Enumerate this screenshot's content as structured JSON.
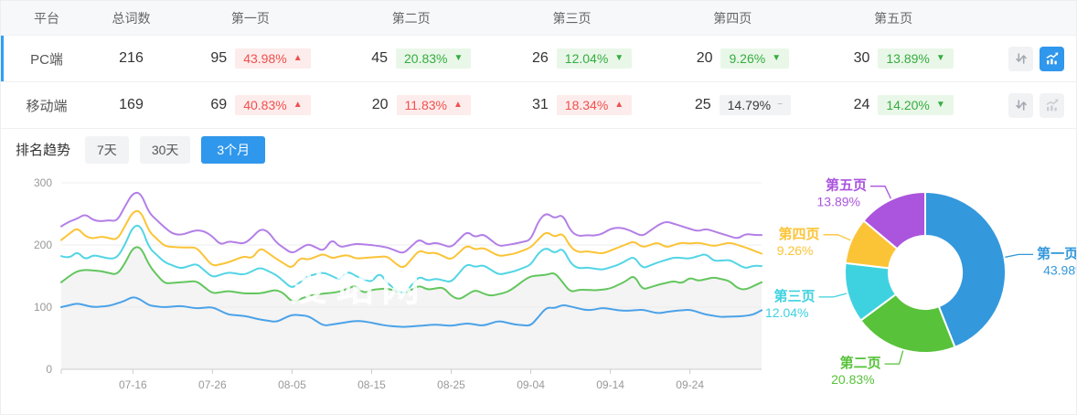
{
  "table": {
    "headers": [
      "平台",
      "总词数",
      "第一页",
      "第二页",
      "第三页",
      "第四页",
      "第五页"
    ],
    "rows": [
      {
        "platform": "PC端",
        "total": "216",
        "selected": true,
        "pages": [
          {
            "count": "95",
            "pct": "43.98%",
            "arrow": "▲",
            "tone": "red"
          },
          {
            "count": "45",
            "pct": "20.83%",
            "arrow": "▼",
            "tone": "green"
          },
          {
            "count": "26",
            "pct": "12.04%",
            "arrow": "▼",
            "tone": "green"
          },
          {
            "count": "20",
            "pct": "9.26%",
            "arrow": "▼",
            "tone": "green"
          },
          {
            "count": "30",
            "pct": "13.89%",
            "arrow": "▼",
            "tone": "green"
          }
        ],
        "trend_button_active": true
      },
      {
        "platform": "移动端",
        "total": "169",
        "selected": false,
        "pages": [
          {
            "count": "69",
            "pct": "40.83%",
            "arrow": "▲",
            "tone": "red"
          },
          {
            "count": "20",
            "pct": "11.83%",
            "arrow": "▲",
            "tone": "red"
          },
          {
            "count": "31",
            "pct": "18.34%",
            "arrow": "▲",
            "tone": "red"
          },
          {
            "count": "25",
            "pct": "14.79%",
            "arrow": "−",
            "tone": "gray"
          },
          {
            "count": "24",
            "pct": "14.20%",
            "arrow": "▼",
            "tone": "green"
          }
        ],
        "trend_button_active": false
      }
    ]
  },
  "trend": {
    "title": "排名趋势",
    "tabs": [
      "7天",
      "30天",
      "3个月"
    ],
    "active_tab": "3个月"
  },
  "colors": {
    "accent_blue": "#2f97ec",
    "row_select_bar": "#2f9ff2",
    "badge_red": "#f0504d",
    "badge_green": "#35ad3f",
    "area_fill": "#f4f4f4"
  },
  "chart_data": [
    {
      "type": "line",
      "title": "排名趋势 3个月",
      "ylim": [
        0,
        300
      ],
      "yticks": [
        0,
        100,
        200,
        300
      ],
      "grid": "horizontal",
      "legend_position": "none",
      "watermark": "爱站网",
      "area_color": "#f4f4f4",
      "x_tick_labels": [
        "07-16",
        "07-26",
        "08-05",
        "08-15",
        "08-25",
        "09-04",
        "09-14",
        "09-24"
      ],
      "x": [
        "07-07",
        "07-08",
        "07-09",
        "07-10",
        "07-11",
        "07-12",
        "07-13",
        "07-14",
        "07-15",
        "07-16",
        "07-17",
        "07-18",
        "07-19",
        "07-20",
        "07-21",
        "07-22",
        "07-23",
        "07-24",
        "07-25",
        "07-26",
        "07-27",
        "07-28",
        "07-29",
        "07-30",
        "07-31",
        "08-01",
        "08-02",
        "08-03",
        "08-04",
        "08-05",
        "08-06",
        "08-07",
        "08-08",
        "08-09",
        "08-10",
        "08-11",
        "08-12",
        "08-13",
        "08-14",
        "08-15",
        "08-16",
        "08-17",
        "08-18",
        "08-19",
        "08-20",
        "08-21",
        "08-22",
        "08-23",
        "08-24",
        "08-25",
        "08-26",
        "08-27",
        "08-28",
        "08-29",
        "08-30",
        "08-31",
        "09-01",
        "09-02",
        "09-03",
        "09-04",
        "09-05",
        "09-06",
        "09-07",
        "09-08",
        "09-09",
        "09-10",
        "09-11",
        "09-12",
        "09-13",
        "09-14",
        "09-15",
        "09-16",
        "09-17",
        "09-18",
        "09-19",
        "09-20",
        "09-21",
        "09-22",
        "09-23",
        "09-24",
        "09-25",
        "09-26",
        "09-27",
        "09-28",
        "09-29",
        "09-30",
        "10-01",
        "10-02",
        "10-03"
      ],
      "series": [
        {
          "name": "第一页",
          "color": "#4ba2e8",
          "area": false,
          "values": [
            100,
            103,
            106,
            103,
            100,
            101,
            102,
            106,
            110,
            117,
            112,
            103,
            101,
            100,
            101,
            102,
            100,
            98,
            99,
            100,
            94,
            88,
            87,
            86,
            83,
            80,
            78,
            76,
            82,
            88,
            87,
            86,
            78,
            70,
            72,
            74,
            76,
            78,
            77,
            75,
            72,
            70,
            69,
            68,
            69,
            70,
            71,
            72,
            71,
            70,
            72,
            74,
            72,
            70,
            74,
            78,
            75,
            72,
            71,
            70,
            85,
            100,
            98,
            104,
            101,
            98,
            95,
            96,
            99,
            97,
            95,
            94,
            95,
            96,
            93,
            90,
            92,
            94,
            95,
            96,
            92,
            88,
            86,
            84,
            85,
            85,
            86,
            88,
            95
          ]
        },
        {
          "name": "第二页",
          "color": "#63c65e",
          "area": true,
          "values": [
            140,
            150,
            158,
            160,
            159,
            158,
            155,
            152,
            170,
            196,
            197,
            168,
            152,
            138,
            139,
            140,
            141,
            142,
            132,
            122,
            124,
            126,
            124,
            122,
            122,
            122,
            125,
            128,
            122,
            108,
            113,
            118,
            120,
            122,
            123,
            125,
            130,
            135,
            122,
            128,
            129,
            130,
            126,
            122,
            128,
            135,
            128,
            130,
            132,
            118,
            112,
            120,
            128,
            122,
            118,
            121,
            124,
            132,
            142,
            150,
            151,
            152,
            156,
            140,
            124,
            128,
            128,
            127,
            128,
            130,
            136,
            142,
            152,
            128,
            132,
            136,
            139,
            142,
            138,
            148,
            142,
            145,
            148,
            145,
            142,
            130,
            128,
            134,
            140
          ]
        },
        {
          "name": "第三页",
          "color": "#52d5e5",
          "area": false,
          "values": [
            182,
            178,
            190,
            176,
            184,
            181,
            178,
            179,
            200,
            230,
            232,
            196,
            184,
            172,
            167,
            162,
            166,
            170,
            159,
            148,
            152,
            156,
            154,
            152,
            158,
            164,
            158,
            152,
            141,
            130,
            140,
            150,
            153,
            156,
            150,
            144,
            158,
            150,
            145,
            140,
            156,
            138,
            129,
            120,
            135,
            150,
            142,
            146,
            143,
            140,
            155,
            170,
            164,
            168,
            160,
            152,
            155,
            158,
            163,
            168,
            188,
            196,
            186,
            196,
            170,
            162,
            164,
            162,
            160,
            164,
            168,
            175,
            182,
            162,
            167,
            172,
            176,
            180,
            179,
            178,
            182,
            186,
            174,
            175,
            176,
            169,
            162,
            167,
            166
          ]
        },
        {
          "name": "第四页",
          "color": "#fbc437",
          "area": false,
          "values": [
            208,
            218,
            228,
            214,
            210,
            214,
            211,
            208,
            230,
            254,
            255,
            222,
            210,
            198,
            197,
            196,
            196,
            196,
            181,
            166,
            169,
            172,
            177,
            182,
            178,
            196,
            187,
            178,
            170,
            162,
            180,
            176,
            181,
            186,
            178,
            182,
            184,
            178,
            179,
            180,
            181,
            182,
            170,
            162,
            177,
            192,
            186,
            188,
            182,
            176,
            188,
            200,
            192,
            196,
            189,
            182,
            184,
            186,
            191,
            196,
            210,
            222,
            212,
            220,
            196,
            188,
            190,
            188,
            186,
            191,
            196,
            201,
            206,
            196,
            200,
            204,
            196,
            200,
            204,
            202,
            204,
            201,
            198,
            201,
            204,
            200,
            196,
            191,
            186
          ]
        },
        {
          "name": "第五页",
          "color": "#b37fe6",
          "area": false,
          "values": [
            230,
            238,
            242,
            250,
            240,
            238,
            240,
            238,
            262,
            284,
            284,
            252,
            240,
            228,
            218,
            216,
            220,
            224,
            222,
            214,
            200,
            206,
            204,
            202,
            212,
            226,
            222,
            204,
            195,
            186,
            194,
            202,
            196,
            190,
            210,
            196,
            199,
            202,
            201,
            200,
            198,
            196,
            191,
            186,
            198,
            210,
            200,
            204,
            200,
            196,
            209,
            222,
            212,
            218,
            208,
            198,
            200,
            202,
            205,
            208,
            240,
            252,
            242,
            250,
            222,
            214,
            216,
            215,
            218,
            226,
            228,
            226,
            220,
            214,
            223,
            232,
            238,
            234,
            230,
            226,
            222,
            226,
            222,
            218,
            214,
            210,
            218,
            216,
            216
          ]
        }
      ]
    },
    {
      "type": "pie",
      "donut": true,
      "label_position": "outside",
      "labels": [
        "第一页",
        "第二页",
        "第三页",
        "第四页",
        "第五页"
      ],
      "values": [
        43.98,
        20.83,
        12.04,
        9.26,
        13.89
      ],
      "colors": [
        "#3398dc",
        "#57c23a",
        "#3ed2e0",
        "#fbc437",
        "#ab54dd"
      ]
    }
  ]
}
